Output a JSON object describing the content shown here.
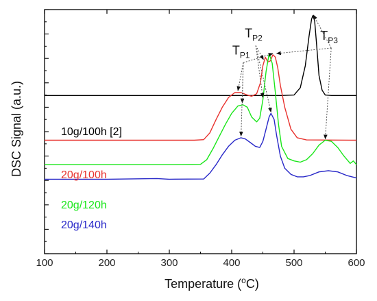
{
  "chart_data": {
    "type": "line",
    "title": "",
    "xlabel": "Temperature (°C)",
    "xlabel_parts": {
      "main": "Temperature (",
      "sup": "o",
      "tail": "C)"
    },
    "ylabel": "DSC Signal (a.u.)",
    "xlim": [
      100,
      600
    ],
    "xticks": [
      100,
      200,
      300,
      400,
      500,
      600
    ],
    "ylim": [
      0,
      10
    ],
    "yticks_unlabeled": true,
    "grid": false,
    "colors": {
      "black": "#000000",
      "red": "#e8322e",
      "green": "#19e619",
      "blue": "#2828c8"
    },
    "series": [
      {
        "name": "10g/100h [2]",
        "color": "#000000",
        "x": [
          100,
          200,
          300,
          400,
          480,
          500,
          510,
          518,
          524,
          528,
          530,
          533,
          536,
          540,
          545,
          550,
          560,
          600
        ],
        "y": [
          6.48,
          6.48,
          6.48,
          6.48,
          6.48,
          6.5,
          6.8,
          7.7,
          8.9,
          9.6,
          9.75,
          9.55,
          8.6,
          7.3,
          6.7,
          6.5,
          6.48,
          6.48
        ]
      },
      {
        "name": "20g/100h",
        "color": "#e8322e",
        "x": [
          100,
          200,
          300,
          340,
          355,
          365,
          375,
          385,
          395,
          405,
          415,
          425,
          432,
          440,
          446,
          450,
          454,
          458,
          462,
          466,
          470,
          474,
          478,
          485,
          495,
          505,
          520,
          600
        ],
        "y": [
          4.65,
          4.65,
          4.65,
          4.65,
          4.67,
          4.95,
          5.5,
          6.0,
          6.4,
          6.6,
          6.6,
          6.5,
          6.45,
          6.55,
          7.0,
          7.7,
          8.05,
          7.85,
          7.9,
          8.15,
          8.05,
          7.6,
          6.9,
          6.0,
          5.1,
          4.75,
          4.66,
          4.65
        ]
      },
      {
        "name": "20g/120h",
        "color": "#19e619",
        "x": [
          100,
          200,
          300,
          350,
          360,
          370,
          380,
          390,
          400,
          410,
          418,
          425,
          432,
          440,
          445,
          450,
          455,
          460,
          465,
          470,
          475,
          480,
          490,
          500,
          510,
          520,
          530,
          540,
          550,
          560,
          570,
          580,
          590,
          595,
          600
        ],
        "y": [
          3.65,
          3.65,
          3.65,
          3.66,
          3.85,
          4.3,
          4.8,
          5.3,
          5.75,
          6.05,
          6.1,
          6.0,
          5.6,
          5.4,
          5.55,
          6.3,
          7.45,
          8.2,
          7.8,
          6.6,
          5.3,
          4.4,
          3.9,
          3.8,
          3.75,
          3.85,
          4.1,
          4.45,
          4.65,
          4.6,
          4.35,
          4.0,
          3.7,
          3.8,
          3.65
        ]
      },
      {
        "name": "20g/140h",
        "color": "#2828c8",
        "x": [
          100,
          200,
          280,
          300,
          355,
          365,
          375,
          385,
          395,
          405,
          415,
          422,
          430,
          438,
          445,
          450,
          455,
          460,
          463,
          468,
          472,
          478,
          485,
          495,
          505,
          515,
          525,
          540,
          555,
          570,
          585,
          600
        ],
        "y": [
          3.05,
          3.05,
          3.08,
          3.05,
          3.06,
          3.3,
          3.65,
          4.05,
          4.4,
          4.65,
          4.75,
          4.7,
          4.55,
          4.4,
          4.35,
          4.6,
          5.1,
          5.6,
          5.75,
          5.5,
          4.85,
          4.0,
          3.5,
          3.25,
          3.15,
          3.15,
          3.2,
          3.35,
          3.4,
          3.35,
          3.2,
          3.1
        ]
      }
    ],
    "annotations": [
      {
        "id": "p1",
        "label": "T",
        "sub": "P1",
        "anchor": {
          "x": 412,
          "y": 8.05
        },
        "targets": [
          {
            "x": 410,
            "y": 6.68
          },
          {
            "x": 417,
            "y": 6.18
          },
          {
            "x": 415,
            "y": 4.82
          },
          {
            "x": 466,
            "y": 8.2
          }
        ]
      },
      {
        "id": "p2",
        "label": "T",
        "sub": "P2",
        "anchor": {
          "x": 432,
          "y": 8.75
        },
        "targets": [
          {
            "x": 451,
            "y": 7.95
          },
          {
            "x": 450,
            "y": 6.4
          },
          {
            "x": 463,
            "y": 5.8
          }
        ]
      },
      {
        "id": "p3",
        "label": "T",
        "sub": "P3",
        "anchor": {
          "x": 553,
          "y": 8.65
        },
        "targets": [
          {
            "x": 531,
            "y": 9.78
          },
          {
            "x": 472,
            "y": 8.2
          },
          {
            "x": 550,
            "y": 4.7
          }
        ]
      }
    ]
  },
  "labels": {
    "label_10g100h": "10g/100h [2]",
    "label_20g100h": "20g/100h",
    "label_20g120h": "20g/120h",
    "label_20g140h": "20g/140h"
  }
}
